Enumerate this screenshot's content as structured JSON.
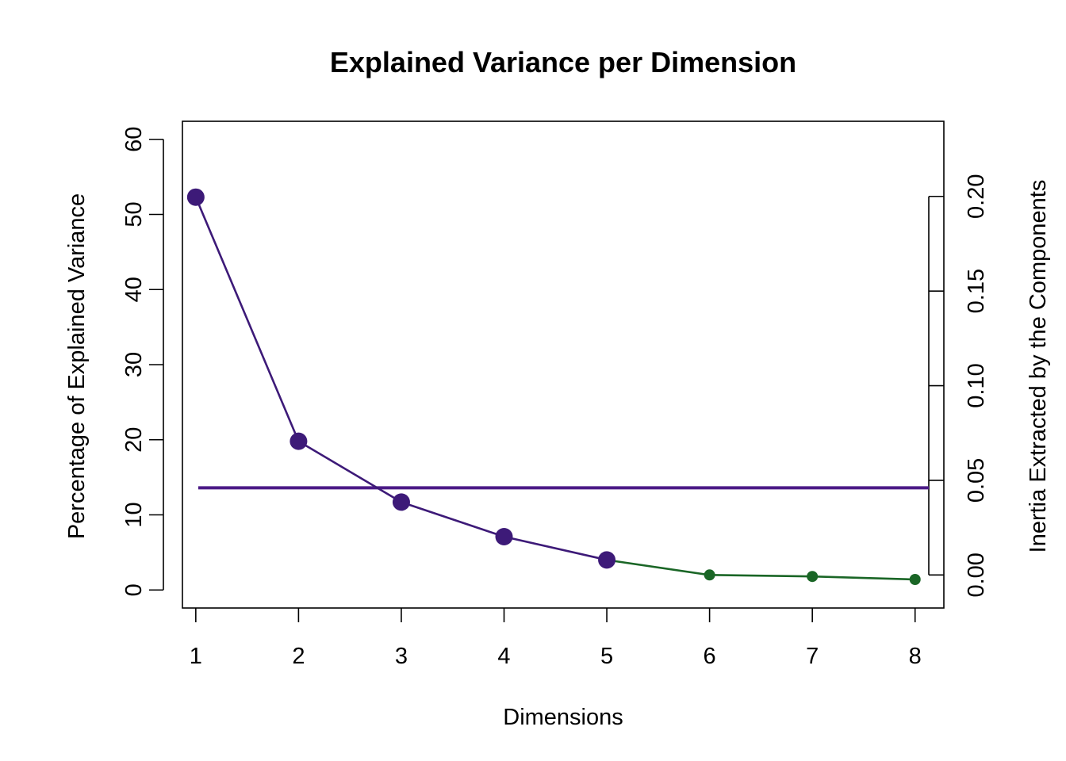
{
  "chart_data": {
    "type": "line",
    "title": "Explained Variance per Dimension",
    "xlabel": "Dimensions",
    "ylabel": "Percentage of Explained Variance",
    "ylabel_right": "Inertia Extracted by the Components",
    "x": [
      1,
      2,
      3,
      4,
      5,
      6,
      7,
      8
    ],
    "x_ticks": [
      "1",
      "2",
      "3",
      "4",
      "5",
      "6",
      "7",
      "8"
    ],
    "xlim": [
      0.87,
      8.28
    ],
    "ylim": [
      -2.4,
      62.4
    ],
    "y_ticks": [
      "0",
      "10",
      "20",
      "30",
      "40",
      "50",
      "60"
    ],
    "y_right_ticks": [
      "0.00",
      "0.05",
      "0.10",
      "0.15",
      "0.20"
    ],
    "y_right_range": [
      0,
      0.2
    ],
    "y_right_scale_on_left": [
      2,
      52.4
    ],
    "series": [
      {
        "values": [
          52.3,
          19.8,
          11.7,
          7.1,
          4.0,
          2.0,
          1.8,
          1.4
        ],
        "significant_count": 5,
        "color_significant": "#3d1a78",
        "color_other": "#1a6626"
      }
    ],
    "reference_line": {
      "y": 13.6,
      "color": "#4b1a86"
    },
    "grid": false,
    "legend": "none"
  }
}
